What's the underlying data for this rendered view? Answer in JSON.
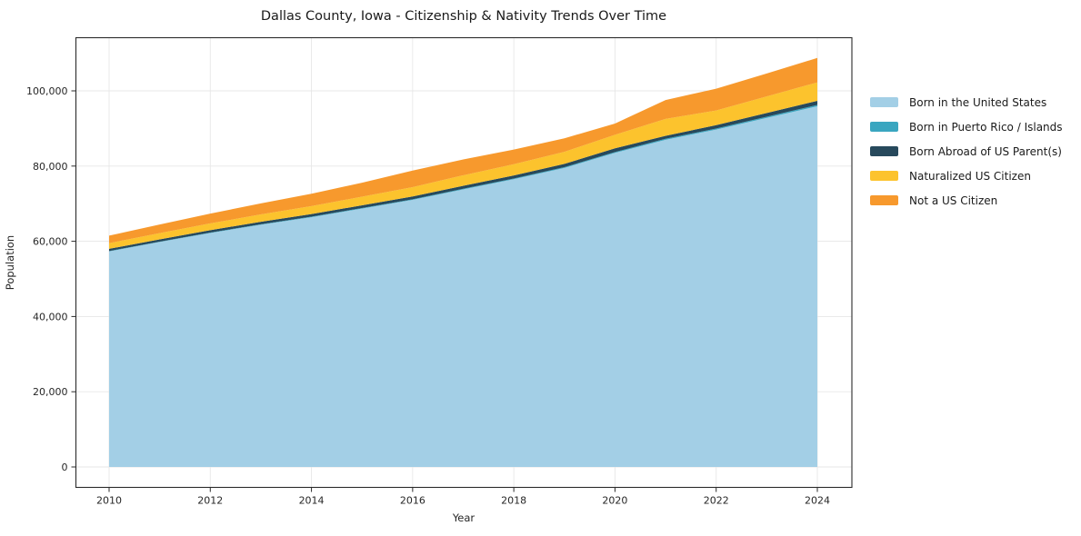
{
  "title": "Dallas County, Iowa - Citizenship & Nativity Trends Over Time",
  "chart_data": {
    "type": "area",
    "stacked": true,
    "title": "Dallas County, Iowa - Citizenship & Nativity Trends Over Time",
    "xlabel": "Year",
    "ylabel": "Population",
    "x": [
      2010,
      2011,
      2012,
      2013,
      2014,
      2015,
      2016,
      2017,
      2018,
      2019,
      2020,
      2021,
      2022,
      2023,
      2024
    ],
    "series": [
      {
        "name": "Born in the United States",
        "color": "#a3cfe6",
        "values": [
          57300,
          59800,
          62200,
          64400,
          66400,
          68700,
          71000,
          73800,
          76500,
          79500,
          83500,
          87000,
          89700,
          92800,
          95900
        ]
      },
      {
        "name": "Born in Puerto Rico / Islands",
        "color": "#3aa6c0",
        "values": [
          100,
          100,
          120,
          130,
          140,
          150,
          160,
          170,
          180,
          200,
          220,
          250,
          280,
          320,
          350
        ]
      },
      {
        "name": "Born Abroad of US Parent(s)",
        "color": "#27495c",
        "values": [
          600,
          620,
          640,
          660,
          700,
          720,
          750,
          780,
          820,
          880,
          1000,
          800,
          900,
          1000,
          1100
        ]
      },
      {
        "name": "Naturalized US Citizen",
        "color": "#fcc32d",
        "values": [
          1500,
          1650,
          1800,
          1950,
          2100,
          2300,
          2500,
          2800,
          3000,
          3200,
          3600,
          4500,
          3900,
          4400,
          4900
        ]
      },
      {
        "name": "Not a US Citizen",
        "color": "#f7992d",
        "values": [
          2000,
          2300,
          2600,
          2950,
          3300,
          3700,
          4400,
          4200,
          3900,
          3600,
          3000,
          5000,
          5800,
          6100,
          6500
        ]
      }
    ],
    "xticks": {
      "values": [
        2010,
        2012,
        2014,
        2016,
        2018,
        2020,
        2022,
        2024
      ],
      "labels": [
        "2010",
        "2012",
        "2014",
        "2016",
        "2018",
        "2020",
        "2022",
        "2024"
      ]
    },
    "yticks": {
      "values": [
        0,
        20000,
        40000,
        60000,
        80000,
        100000
      ],
      "labels": [
        "0",
        "20,000",
        "40,000",
        "60,000",
        "80,000",
        "100,000"
      ]
    },
    "ylim": [
      0,
      110000
    ],
    "grid": true,
    "legend_position": "right"
  },
  "colors": {
    "grid": "#e7e7e7",
    "spine": "#2b2b2b",
    "tick_text": "#262626",
    "title_text": "#1a1a1a"
  }
}
